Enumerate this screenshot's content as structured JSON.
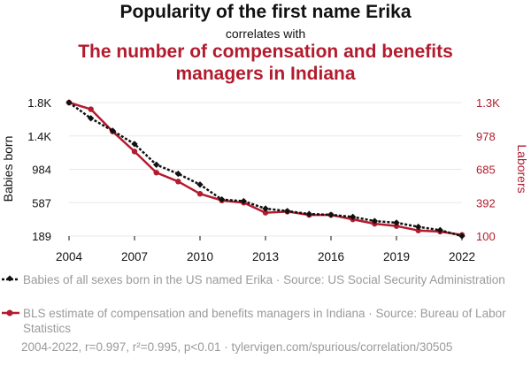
{
  "header": {
    "title": "Popularity of the first name Erika",
    "subtitle": "correlates with",
    "title2": "The number of compensation and benefits managers in Indiana"
  },
  "colors": {
    "series1": "#111111",
    "series2": "#b31b2e",
    "grid": "#e8e8e8",
    "muted": "#9a9a9a"
  },
  "chart_data": {
    "type": "line",
    "x": [
      2004,
      2005,
      2006,
      2007,
      2008,
      2009,
      2010,
      2011,
      2012,
      2013,
      2014,
      2015,
      2016,
      2017,
      2018,
      2019,
      2020,
      2021,
      2022
    ],
    "xticks": [
      "2004",
      "2007",
      "2010",
      "2013",
      "2016",
      "2019",
      "2022"
    ],
    "y_left": {
      "label": "Babies born",
      "ticks": [
        "189",
        "587",
        "984",
        "1.4K",
        "1.8K"
      ],
      "range": [
        189,
        1800
      ]
    },
    "y_right": {
      "label": "Laborers",
      "ticks": [
        "100",
        "392",
        "685",
        "978",
        "1.3K"
      ],
      "range": [
        100,
        1300
      ]
    },
    "series": [
      {
        "name": "Babies of all sexes born in the US named Erika",
        "axis": "left",
        "marker": "diamond",
        "dashed": true,
        "values": [
          1800,
          1610,
          1460,
          1300,
          1050,
          940,
          810,
          630,
          610,
          520,
          490,
          455,
          445,
          420,
          370,
          350,
          300,
          260,
          189
        ]
      },
      {
        "name": "BLS estimate of compensation and benefits managers in Indiana",
        "axis": "right",
        "marker": "circle",
        "dashed": false,
        "values": [
          1300,
          1240,
          1040,
          860,
          670,
          590,
          480,
          420,
          400,
          310,
          320,
          290,
          290,
          250,
          210,
          190,
          150,
          140,
          110
        ]
      }
    ]
  },
  "legend": {
    "item1": "Babies of all sexes born in the US named Erika · Source: US Social Security Administration",
    "item2": "BLS estimate of compensation and benefits managers in Indiana · Source: Bureau of Labor Statistics"
  },
  "footer": "2004-2022, r=0.997, r²=0.995, p<0.01 · tylervigen.com/spurious/correlation/30505"
}
